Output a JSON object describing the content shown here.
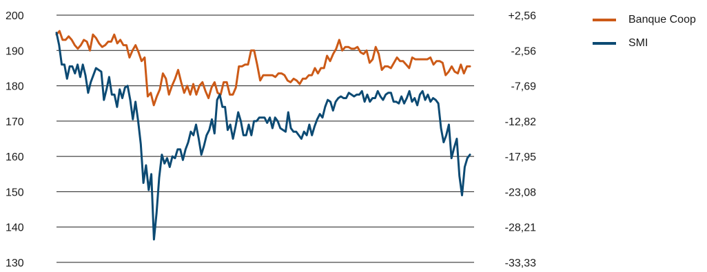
{
  "chart_data": {
    "type": "line",
    "title": "",
    "xlabel": "",
    "ylabel": "",
    "ylim": [
      130,
      200
    ],
    "y_ticks": [
      "200",
      "190",
      "180",
      "170",
      "160",
      "150",
      "140",
      "130"
    ],
    "y2lim": [
      -33.33,
      2.56
    ],
    "y2_ticks": [
      "+2,56",
      "-2,56",
      "-7,69",
      "-12,82",
      "-17,95",
      "-23,08",
      "-28,21",
      "-33,33"
    ],
    "grid": true,
    "legend_position": "top-right",
    "colors": {
      "Banque Coop": "#cc5a17",
      "SMI": "#0c4a73"
    },
    "series": [
      {
        "name": "Banque Coop",
        "values": [
          194.5,
          195.5,
          193,
          193,
          194,
          193,
          191.5,
          190.5,
          191.5,
          193,
          192.5,
          190,
          194.5,
          193.5,
          192,
          191,
          191.5,
          192.5,
          192.5,
          194.5,
          192,
          193,
          191.5,
          191.5,
          188,
          190,
          191.5,
          189.5,
          187,
          188,
          177,
          178,
          174.5,
          177,
          179,
          183.5,
          182,
          177.5,
          180,
          182,
          184.5,
          181,
          178,
          180,
          177.5,
          180.5,
          177.5,
          180,
          181,
          178.5,
          176.5,
          179.5,
          181,
          178,
          177.5,
          181,
          181,
          177.5,
          177.5,
          179.5,
          185.5,
          185.5,
          186,
          186,
          190,
          190,
          186,
          181.5,
          183,
          183,
          183,
          183,
          182.5,
          183.5,
          183.5,
          183,
          181.5,
          181,
          182,
          181.5,
          180.5,
          182,
          182,
          183,
          183,
          185,
          183.5,
          185,
          185,
          188.5,
          187,
          189,
          190.5,
          193,
          190,
          191,
          191,
          190.5,
          190.5,
          191,
          189.5,
          189,
          190,
          186.5,
          187.5,
          191,
          189,
          184.5,
          185.5,
          185.5,
          185,
          186.5,
          188,
          187,
          187,
          186,
          185,
          188,
          187.5,
          187.5,
          187.5,
          187.5,
          187.5,
          188,
          186,
          187,
          187,
          186.5,
          183,
          184,
          185.5,
          184,
          183.5,
          186,
          183.5,
          185.5,
          185.5
        ]
      },
      {
        "name": "SMI",
        "values": [
          195,
          191.5,
          186,
          186,
          182,
          185.5,
          185.5,
          183.5,
          186,
          182.5,
          186,
          183,
          178,
          181,
          183,
          185,
          184.5,
          184,
          176,
          179,
          182.5,
          177.5,
          177.5,
          174,
          179,
          176.5,
          179.5,
          180,
          176,
          170.5,
          175.5,
          170,
          163.5,
          152.5,
          157.5,
          150.5,
          155,
          136.5,
          144,
          154,
          160.5,
          158,
          159.5,
          157,
          160,
          159.5,
          162,
          162,
          159,
          162,
          164,
          167,
          166,
          169,
          165,
          160.5,
          163,
          166,
          167.5,
          170.5,
          166.5,
          176,
          177.5,
          174,
          174,
          167.5,
          169,
          165,
          168.5,
          172.5,
          170,
          166,
          166,
          169,
          166,
          170,
          170,
          171,
          171,
          171,
          169.5,
          171,
          168,
          171,
          170,
          168,
          167.5,
          167,
          172.5,
          168,
          167,
          167,
          166,
          165,
          167,
          166,
          169,
          166,
          168.5,
          170.5,
          172,
          171,
          174,
          176,
          175.5,
          173,
          175.5,
          176.5,
          177,
          176.5,
          176.5,
          178,
          177.5,
          177,
          177.5,
          177.5,
          178.5,
          175.5,
          177.5,
          175.5,
          176.5,
          176.5,
          178.5,
          177,
          176,
          177.5,
          178,
          178,
          175.5,
          175.5,
          175,
          177,
          175,
          176.5,
          178.5,
          175.5,
          176.5,
          174.5,
          177.5,
          178.5,
          176,
          177.5,
          175.5,
          176.5,
          176,
          175,
          168,
          164,
          166,
          169,
          159.5,
          162.5,
          165,
          154.5,
          149,
          157,
          159.5,
          160.5
        ]
      }
    ]
  }
}
